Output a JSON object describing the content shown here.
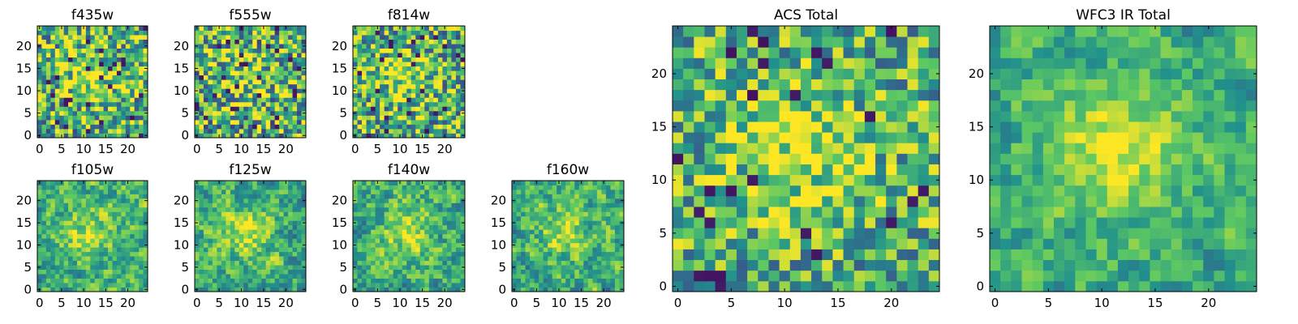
{
  "colormap": [
    "#440154",
    "#3b528b",
    "#21918c",
    "#5ec962",
    "#fde725"
  ],
  "chart_data": [
    {
      "type": "heatmap",
      "title": "f435w",
      "grid_size": 25,
      "value_range": [
        0,
        1
      ],
      "xticks": [
        "0",
        "5",
        "10",
        "15",
        "20"
      ],
      "yticks": [
        "0",
        "5",
        "10",
        "15",
        "20"
      ],
      "seed": 11,
      "noise": 0.55,
      "smooth": 0,
      "hotspot": 0.45
    },
    {
      "type": "heatmap",
      "title": "f555w",
      "grid_size": 25,
      "value_range": [
        0,
        1
      ],
      "xticks": [
        "0",
        "5",
        "10",
        "15",
        "20"
      ],
      "yticks": [
        "0",
        "5",
        "10",
        "15",
        "20"
      ],
      "seed": 23,
      "noise": 0.6,
      "smooth": 0,
      "hotspot": 0.35
    },
    {
      "type": "heatmap",
      "title": "f814w",
      "grid_size": 25,
      "value_range": [
        0,
        1
      ],
      "xticks": [
        "0",
        "5",
        "10",
        "15",
        "20"
      ],
      "yticks": [
        "0",
        "5",
        "10",
        "15",
        "20"
      ],
      "seed": 37,
      "noise": 0.55,
      "smooth": 0,
      "hotspot": 0.45
    },
    {
      "type": "heatmap",
      "title": "f105w",
      "grid_size": 25,
      "value_range": [
        0,
        1
      ],
      "xticks": [
        "0",
        "5",
        "10",
        "15",
        "20"
      ],
      "yticks": [
        "0",
        "5",
        "10",
        "15",
        "20"
      ],
      "seed": 41,
      "noise": 0.5,
      "smooth": 1,
      "hotspot": 0.45
    },
    {
      "type": "heatmap",
      "title": "f125w",
      "grid_size": 25,
      "value_range": [
        0,
        1
      ],
      "xticks": [
        "0",
        "5",
        "10",
        "15",
        "20"
      ],
      "yticks": [
        "0",
        "5",
        "10",
        "15",
        "20"
      ],
      "seed": 53,
      "noise": 0.5,
      "smooth": 1,
      "hotspot": 0.45
    },
    {
      "type": "heatmap",
      "title": "f140w",
      "grid_size": 25,
      "value_range": [
        0,
        1
      ],
      "xticks": [
        "0",
        "5",
        "10",
        "15",
        "20"
      ],
      "yticks": [
        "0",
        "5",
        "10",
        "15",
        "20"
      ],
      "seed": 67,
      "noise": 0.5,
      "smooth": 1,
      "hotspot": 0.45
    },
    {
      "type": "heatmap",
      "title": "f160w",
      "grid_size": 25,
      "value_range": [
        0,
        1
      ],
      "xticks": [
        "0",
        "5",
        "10",
        "15",
        "20"
      ],
      "yticks": [
        "0",
        "5",
        "10",
        "15",
        "20"
      ],
      "seed": 79,
      "noise": 0.5,
      "smooth": 1,
      "hotspot": 0.45
    },
    {
      "type": "heatmap",
      "title": "ACS Total",
      "grid_size": 25,
      "value_range": [
        0,
        1
      ],
      "xticks": [
        "0",
        "5",
        "10",
        "15",
        "20"
      ],
      "yticks": [
        "0",
        "5",
        "10",
        "15",
        "20"
      ],
      "seed": 97,
      "noise": 0.45,
      "smooth": 0,
      "hotspot": 0.5
    },
    {
      "type": "heatmap",
      "title": "WFC3 IR Total",
      "grid_size": 25,
      "value_range": [
        0,
        1
      ],
      "xticks": [
        "0",
        "5",
        "10",
        "15",
        "20"
      ],
      "yticks": [
        "0",
        "5",
        "10",
        "15",
        "20"
      ],
      "seed": 113,
      "noise": 0.4,
      "smooth": 1,
      "hotspot": 0.55
    }
  ]
}
